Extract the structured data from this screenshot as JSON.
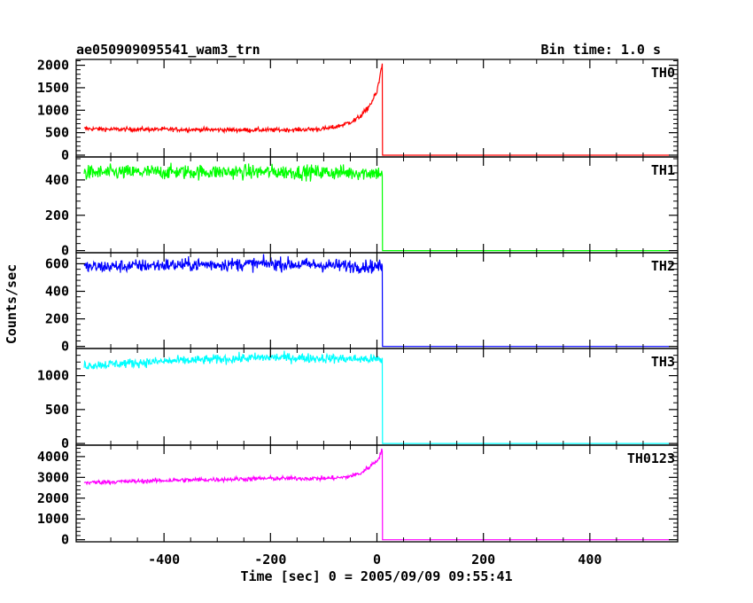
{
  "header": {
    "title": "ae050909095541_wam3_trn",
    "bin_time": "Bin time: 1.0 s"
  },
  "axes": {
    "xlabel": "Time [sec] 0 = 2005/09/09 09:55:41",
    "ylabel": "Counts/sec",
    "xlim": [
      -565,
      565
    ],
    "xticks": [
      -400,
      -200,
      0,
      200,
      400
    ]
  },
  "chart_data": [
    {
      "type": "line",
      "name": "TH0",
      "color": "#ff0000",
      "ylim": [
        -40,
        2130
      ],
      "yticks": [
        0,
        500,
        1000,
        1500,
        2000
      ],
      "x": [
        -550,
        -500,
        -400,
        -300,
        -200,
        -150,
        -100,
        -80,
        -60,
        -40,
        -30,
        -20,
        -10,
        0,
        5,
        10,
        10.5,
        550
      ],
      "y": [
        590,
        575,
        575,
        565,
        560,
        565,
        585,
        620,
        690,
        790,
        880,
        1000,
        1180,
        1400,
        1700,
        2080,
        0,
        0
      ]
    },
    {
      "type": "line",
      "name": "TH1",
      "color": "#00ff00",
      "ylim": [
        -12,
        530
      ],
      "yticks": [
        0,
        200,
        400
      ],
      "x": [
        -550,
        -400,
        -200,
        0,
        10,
        10.5,
        550
      ],
      "y": [
        440,
        445,
        445,
        440,
        440,
        0,
        0
      ]
    },
    {
      "type": "line",
      "name": "TH2",
      "color": "#0000ff",
      "ylim": [
        -15,
        680
      ],
      "yticks": [
        0,
        200,
        400,
        600
      ],
      "x": [
        -550,
        -400,
        -200,
        0,
        10,
        10.5,
        550
      ],
      "y": [
        575,
        590,
        600,
        580,
        580,
        0,
        0
      ]
    },
    {
      "type": "line",
      "name": "TH3",
      "color": "#00ffff",
      "ylim": [
        -25,
        1400
      ],
      "yticks": [
        0,
        500,
        1000
      ],
      "x": [
        -550,
        -400,
        -200,
        0,
        10,
        10.5,
        550
      ],
      "y": [
        1150,
        1210,
        1270,
        1240,
        1230,
        0,
        0
      ]
    },
    {
      "type": "line",
      "name": "TH0123",
      "color": "#ff00ff",
      "ylim": [
        -100,
        4550
      ],
      "yticks": [
        0,
        1000,
        2000,
        3000,
        4000
      ],
      "x": [
        -550,
        -400,
        -200,
        -100,
        -60,
        -30,
        -15,
        0,
        5,
        10,
        10.5,
        550
      ],
      "y": [
        2750,
        2850,
        2950,
        2950,
        3000,
        3200,
        3500,
        3800,
        4050,
        4300,
        0,
        0
      ]
    }
  ]
}
